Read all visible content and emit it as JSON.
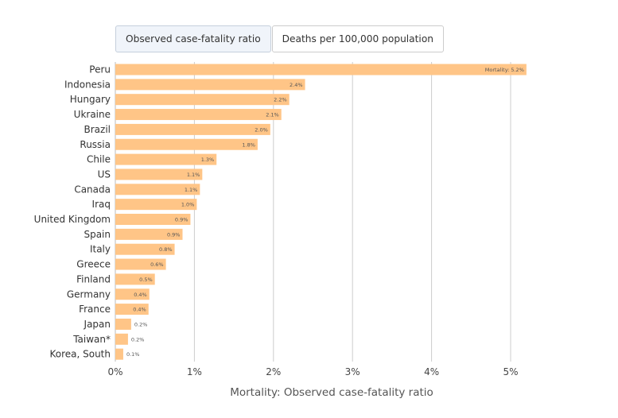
{
  "tabs": [
    {
      "label": "Observed case-fatality ratio",
      "active": true
    },
    {
      "label": "Deaths per 100,000 population",
      "active": false
    }
  ],
  "colors": {
    "bar": "#ffc587",
    "grid": "#cccccc"
  },
  "chart_data": {
    "type": "bar",
    "orientation": "horizontal",
    "title": "",
    "xlabel": "Mortality: Observed case-fatality ratio",
    "ylabel": "",
    "xlim": [
      0,
      5.4
    ],
    "xticks": [
      0,
      1,
      2,
      3,
      4,
      5
    ],
    "xtick_labels": [
      "0%",
      "1%",
      "2%",
      "3%",
      "4%",
      "5%"
    ],
    "grid": true,
    "categories": [
      "Peru",
      "Indonesia",
      "Hungary",
      "Ukraine",
      "Brazil",
      "Russia",
      "Chile",
      "US",
      "Canada",
      "Iraq",
      "United Kingdom",
      "Spain",
      "Italy",
      "Greece",
      "Finland",
      "Germany",
      "France",
      "Japan",
      "Taiwan*",
      "Korea, South"
    ],
    "values": [
      5.2,
      2.4,
      2.2,
      2.1,
      1.96,
      1.8,
      1.28,
      1.1,
      1.07,
      1.03,
      0.95,
      0.85,
      0.75,
      0.64,
      0.5,
      0.43,
      0.42,
      0.2,
      0.16,
      0.1
    ],
    "data_labels": [
      "Mortality: 5.2%",
      "2.4%",
      "2.2%",
      "2.1%",
      "2.0%",
      "1.8%",
      "1.3%",
      "1.1%",
      "1.1%",
      "1.0%",
      "0.9%",
      "0.9%",
      "0.8%",
      "0.6%",
      "0.5%",
      "0.4%",
      "0.4%",
      "0.2%",
      "0.2%",
      "0.1%"
    ]
  }
}
